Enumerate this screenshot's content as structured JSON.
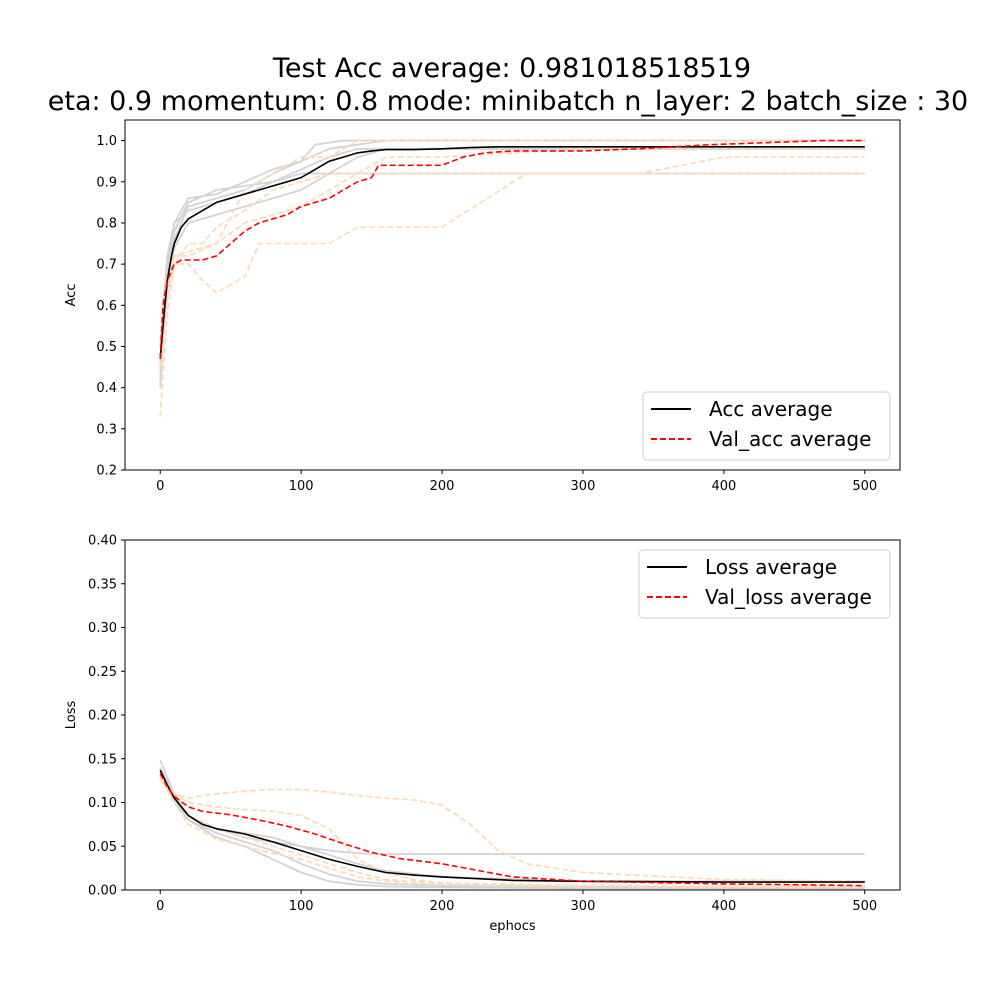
{
  "figure": {
    "title_line1": "Test Acc average: 0.981018518519",
    "title_line2": "eta: 0.9 momentum: 0.8 mode: minibatch n_layer: 2 batch_size : 30"
  },
  "colors": {
    "train_average": "#000000",
    "val_average": "#ff0000",
    "train_runs": "#d3d3d3",
    "val_runs": "#ffdab9"
  },
  "chart_data": [
    {
      "type": "line",
      "id": "acc",
      "xlabel": "",
      "ylabel": "Acc",
      "xlim": [
        -25,
        525
      ],
      "ylim": [
        0.2,
        1.05
      ],
      "xticks": [
        0,
        100,
        200,
        300,
        400,
        500
      ],
      "yticks": [
        0.2,
        0.3,
        0.4,
        0.5,
        0.6,
        0.7,
        0.8,
        0.9,
        1.0
      ],
      "ytick_labels": [
        "0.2",
        "0.3",
        "0.4",
        "0.5",
        "0.6",
        "0.7",
        "0.8",
        "0.9",
        "1.0"
      ],
      "legend": {
        "placement": "lower-right",
        "entries": [
          "Acc average",
          "Val_acc average"
        ]
      },
      "series": [
        {
          "name": "Acc average",
          "role": "average",
          "kind": "train",
          "x": [
            0,
            2,
            5,
            8,
            10,
            15,
            20,
            30,
            40,
            50,
            60,
            70,
            80,
            90,
            100,
            110,
            120,
            130,
            140,
            150,
            160,
            180,
            200,
            220,
            240,
            260,
            300,
            350,
            400,
            450,
            500
          ],
          "y": [
            0.47,
            0.55,
            0.66,
            0.72,
            0.75,
            0.79,
            0.81,
            0.83,
            0.85,
            0.86,
            0.87,
            0.88,
            0.89,
            0.9,
            0.91,
            0.93,
            0.95,
            0.96,
            0.97,
            0.975,
            0.978,
            0.978,
            0.98,
            0.983,
            0.985,
            0.985,
            0.985,
            0.985,
            0.985,
            0.985,
            0.985
          ]
        },
        {
          "name": "Val_acc average",
          "role": "average",
          "kind": "val",
          "x": [
            0,
            2,
            5,
            10,
            15,
            20,
            30,
            40,
            50,
            60,
            70,
            80,
            90,
            100,
            110,
            120,
            130,
            140,
            150,
            155,
            160,
            200,
            215,
            230,
            250,
            300,
            340,
            390,
            470,
            500
          ],
          "y": [
            0.47,
            0.6,
            0.66,
            0.7,
            0.71,
            0.71,
            0.71,
            0.72,
            0.75,
            0.78,
            0.8,
            0.81,
            0.82,
            0.84,
            0.85,
            0.86,
            0.88,
            0.9,
            0.91,
            0.94,
            0.94,
            0.94,
            0.96,
            0.97,
            0.975,
            0.975,
            0.98,
            0.99,
            1.0,
            1.0
          ]
        },
        {
          "name": "",
          "role": "run",
          "kind": "train",
          "x": [
            0,
            5,
            10,
            20,
            40,
            60,
            80,
            100,
            120,
            140,
            160,
            200,
            250,
            300,
            400,
            500
          ],
          "y": [
            0.4,
            0.68,
            0.78,
            0.85,
            0.88,
            0.89,
            0.9,
            0.92,
            0.92,
            0.92,
            0.92,
            0.92,
            0.92,
            0.92,
            0.92,
            0.92
          ]
        },
        {
          "name": "",
          "role": "run",
          "kind": "train",
          "x": [
            0,
            5,
            10,
            20,
            40,
            60,
            80,
            100,
            120,
            140,
            160,
            200,
            300,
            400,
            500
          ],
          "y": [
            0.45,
            0.7,
            0.8,
            0.86,
            0.87,
            0.9,
            0.93,
            0.95,
            0.98,
            0.99,
            1.0,
            1.0,
            1.0,
            1.0,
            1.0
          ]
        },
        {
          "name": "",
          "role": "run",
          "kind": "train",
          "x": [
            0,
            5,
            10,
            20,
            40,
            60,
            80,
            100,
            120,
            140,
            160,
            200,
            300,
            400,
            500
          ],
          "y": [
            0.5,
            0.72,
            0.8,
            0.83,
            0.85,
            0.87,
            0.9,
            0.93,
            0.96,
            0.98,
            0.98,
            0.98,
            0.98,
            0.98,
            0.98
          ]
        },
        {
          "name": "",
          "role": "run",
          "kind": "train",
          "x": [
            0,
            5,
            10,
            20,
            40,
            60,
            80,
            100,
            110,
            130,
            150,
            200,
            300,
            400,
            500
          ],
          "y": [
            0.42,
            0.66,
            0.76,
            0.84,
            0.86,
            0.88,
            0.92,
            0.95,
            0.99,
            1.0,
            1.0,
            1.0,
            1.0,
            1.0,
            1.0
          ]
        },
        {
          "name": "",
          "role": "run",
          "kind": "train",
          "x": [
            0,
            5,
            10,
            20,
            40,
            60,
            80,
            100,
            120,
            140,
            160,
            200,
            300,
            400,
            500
          ],
          "y": [
            0.44,
            0.64,
            0.74,
            0.8,
            0.82,
            0.84,
            0.86,
            0.88,
            0.92,
            0.96,
            0.98,
            0.98,
            0.98,
            0.98,
            0.98
          ]
        },
        {
          "name": "",
          "role": "run",
          "kind": "val",
          "x": [
            0,
            5,
            10,
            20,
            30,
            40,
            60,
            80,
            100,
            120,
            130,
            140,
            150,
            160,
            200,
            300,
            340,
            400,
            500
          ],
          "y": [
            0.33,
            0.58,
            0.7,
            0.75,
            0.75,
            0.79,
            0.83,
            0.88,
            0.9,
            0.92,
            0.92,
            0.92,
            0.92,
            0.92,
            0.92,
            0.92,
            0.92,
            0.96,
            0.96
          ]
        },
        {
          "name": "",
          "role": "run",
          "kind": "val",
          "x": [
            0,
            5,
            10,
            20,
            30,
            40,
            60,
            70,
            80,
            100,
            120,
            140,
            160,
            200,
            260,
            300,
            500
          ],
          "y": [
            0.45,
            0.62,
            0.7,
            0.7,
            0.66,
            0.63,
            0.67,
            0.75,
            0.75,
            0.75,
            0.75,
            0.79,
            0.79,
            0.79,
            0.92,
            0.92,
            0.92
          ]
        },
        {
          "name": "",
          "role": "run",
          "kind": "val",
          "x": [
            0,
            5,
            10,
            20,
            40,
            60,
            80,
            100,
            120,
            140,
            160,
            200,
            300,
            400,
            500
          ],
          "y": [
            0.5,
            0.66,
            0.72,
            0.72,
            0.75,
            0.88,
            0.92,
            0.96,
            0.96,
            1.0,
            1.0,
            1.0,
            1.0,
            1.0,
            1.0
          ]
        },
        {
          "name": "",
          "role": "run",
          "kind": "val",
          "x": [
            0,
            5,
            10,
            20,
            40,
            60,
            80,
            100,
            120,
            140,
            160,
            200,
            300,
            400,
            500
          ],
          "y": [
            0.45,
            0.62,
            0.72,
            0.73,
            0.75,
            0.8,
            0.82,
            0.84,
            0.88,
            0.92,
            0.96,
            0.96,
            0.98,
            0.98,
            0.98
          ]
        }
      ]
    },
    {
      "type": "line",
      "id": "loss",
      "xlabel": "ephocs",
      "ylabel": "Loss",
      "xlim": [
        -25,
        525
      ],
      "ylim": [
        0.0,
        0.4
      ],
      "xticks": [
        0,
        100,
        200,
        300,
        400,
        500
      ],
      "yticks": [
        0.0,
        0.05,
        0.1,
        0.15,
        0.2,
        0.25,
        0.3,
        0.35,
        0.4
      ],
      "ytick_labels": [
        "0.00",
        "0.05",
        "0.10",
        "0.15",
        "0.20",
        "0.25",
        "0.30",
        "0.35",
        "0.40"
      ],
      "legend": {
        "placement": "top-right",
        "entries": [
          "Loss average",
          "Val_loss average"
        ]
      },
      "series": [
        {
          "name": "Loss average",
          "role": "average",
          "kind": "train",
          "x": [
            0,
            5,
            10,
            20,
            30,
            40,
            50,
            60,
            80,
            100,
            120,
            140,
            160,
            180,
            200,
            250,
            300,
            400,
            500
          ],
          "y": [
            0.137,
            0.12,
            0.105,
            0.085,
            0.075,
            0.07,
            0.067,
            0.064,
            0.055,
            0.045,
            0.035,
            0.027,
            0.02,
            0.017,
            0.015,
            0.011,
            0.01,
            0.009,
            0.009
          ]
        },
        {
          "name": "Val_loss average",
          "role": "average",
          "kind": "val",
          "x": [
            0,
            5,
            10,
            20,
            30,
            50,
            70,
            90,
            110,
            130,
            150,
            170,
            200,
            220,
            250,
            300,
            400,
            500
          ],
          "y": [
            0.133,
            0.118,
            0.107,
            0.095,
            0.09,
            0.086,
            0.08,
            0.073,
            0.064,
            0.053,
            0.043,
            0.036,
            0.03,
            0.024,
            0.015,
            0.01,
            0.007,
            0.005
          ]
        },
        {
          "name": "",
          "role": "run",
          "kind": "train",
          "x": [
            0,
            10,
            20,
            40,
            60,
            80,
            100,
            120,
            140,
            160,
            200,
            300,
            400,
            500
          ],
          "y": [
            0.148,
            0.11,
            0.085,
            0.07,
            0.06,
            0.055,
            0.05,
            0.045,
            0.042,
            0.041,
            0.041,
            0.041,
            0.041,
            0.041
          ]
        },
        {
          "name": "",
          "role": "run",
          "kind": "train",
          "x": [
            0,
            10,
            20,
            40,
            60,
            80,
            100,
            120,
            140,
            160,
            200,
            300,
            400,
            500
          ],
          "y": [
            0.13,
            0.1,
            0.08,
            0.065,
            0.055,
            0.045,
            0.03,
            0.018,
            0.01,
            0.007,
            0.005,
            0.004,
            0.003,
            0.003
          ]
        },
        {
          "name": "",
          "role": "run",
          "kind": "train",
          "x": [
            0,
            10,
            20,
            40,
            60,
            80,
            100,
            120,
            140,
            160,
            200,
            300,
            400,
            500
          ],
          "y": [
            0.135,
            0.105,
            0.08,
            0.06,
            0.05,
            0.035,
            0.02,
            0.01,
            0.006,
            0.004,
            0.003,
            0.002,
            0.002,
            0.002
          ]
        },
        {
          "name": "",
          "role": "run",
          "kind": "train",
          "x": [
            0,
            10,
            20,
            40,
            60,
            80,
            100,
            120,
            140,
            160,
            200,
            300,
            400,
            500
          ],
          "y": [
            0.14,
            0.108,
            0.085,
            0.07,
            0.065,
            0.06,
            0.05,
            0.04,
            0.03,
            0.022,
            0.015,
            0.01,
            0.01,
            0.01
          ]
        },
        {
          "name": "",
          "role": "run",
          "kind": "val",
          "x": [
            0,
            10,
            20,
            30,
            40,
            60,
            80,
            100,
            120,
            140,
            160,
            180,
            200,
            220,
            240,
            260,
            300,
            400,
            500
          ],
          "y": [
            0.13,
            0.11,
            0.105,
            0.108,
            0.11,
            0.113,
            0.115,
            0.115,
            0.112,
            0.108,
            0.105,
            0.103,
            0.097,
            0.075,
            0.045,
            0.03,
            0.02,
            0.012,
            0.01
          ]
        },
        {
          "name": "",
          "role": "run",
          "kind": "val",
          "x": [
            0,
            10,
            20,
            40,
            60,
            80,
            100,
            120,
            140,
            160,
            180,
            200,
            250,
            300,
            400,
            500
          ],
          "y": [
            0.125,
            0.11,
            0.1,
            0.095,
            0.092,
            0.09,
            0.085,
            0.07,
            0.035,
            0.02,
            0.012,
            0.008,
            0.006,
            0.005,
            0.004,
            0.004
          ]
        },
        {
          "name": "",
          "role": "run",
          "kind": "val",
          "x": [
            0,
            10,
            20,
            40,
            60,
            80,
            100,
            120,
            140,
            160,
            200,
            300,
            400,
            500
          ],
          "y": [
            0.13,
            0.1,
            0.075,
            0.058,
            0.05,
            0.042,
            0.035,
            0.025,
            0.015,
            0.01,
            0.006,
            0.004,
            0.003,
            0.003
          ]
        },
        {
          "name": "",
          "role": "run",
          "kind": "val",
          "x": [
            0,
            10,
            20,
            40,
            60,
            80,
            100,
            120,
            140,
            160,
            200,
            300,
            400,
            500
          ],
          "y": [
            0.128,
            0.105,
            0.085,
            0.07,
            0.06,
            0.05,
            0.04,
            0.03,
            0.02,
            0.012,
            0.008,
            0.005,
            0.004,
            0.004
          ]
        }
      ]
    }
  ]
}
